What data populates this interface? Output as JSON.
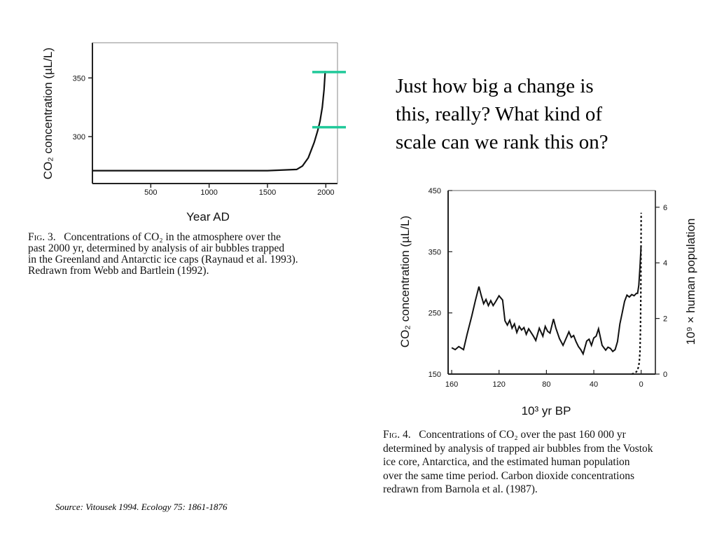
{
  "question": {
    "line1": "Just how big a change is",
    "line2": "this, really?  What kind of",
    "line3": "scale can we rank this on?"
  },
  "source": "Source: Vitousek 1994.  Ecology 75: 1861-1876",
  "fig3": {
    "caption_label": "Fig. 3.",
    "caption_lines": [
      "Concentrations of CO₂ in the atmosphere over the",
      "past 2000 yr, determined by analysis of air bubbles trapped",
      "in the Greenland and Antarctic ice caps (Raynaud et al. 1993).",
      "Redrawn from Webb and Bartlein (1992)."
    ]
  },
  "fig4": {
    "caption_label": "Fig. 4.",
    "caption_lines": [
      "Concentrations of CO₂ over the past 160 000 yr",
      "determined by analysis of trapped air bubbles from the Vostok",
      "ice core, Antarctica, and the estimated human population",
      "over the same time period. Carbon dioxide concentrations",
      "redrawn from Barnola et al. (1987)."
    ]
  },
  "marker_color": "#21c99a",
  "chart_data": [
    {
      "type": "line",
      "xlabel": "Year AD",
      "ylabel": "CO₂ concentration (µL/L)",
      "x_ticks": [
        500,
        1000,
        1500,
        2000
      ],
      "y_ticks": [
        300,
        350
      ],
      "xlim": [
        0,
        2100
      ],
      "ylim": [
        260,
        380
      ],
      "series": [
        {
          "x": [
            0,
            500,
            1000,
            1500,
            1750,
            1800,
            1850,
            1900,
            1930,
            1950,
            1970,
            1985,
            1995
          ],
          "y": [
            271,
            271,
            271,
            271,
            272,
            275,
            282,
            295,
            305,
            313,
            325,
            340,
            356
          ]
        }
      ],
      "markers_y": [
        355,
        308
      ]
    },
    {
      "type": "line",
      "xlabel": "10³ yr BP",
      "ylabel": "CO₂ concentration (µL/L)",
      "y2label": "10⁹ × human population",
      "x_ticks": [
        160,
        120,
        80,
        40,
        0
      ],
      "y_ticks": [
        150,
        250,
        350,
        450
      ],
      "y2_ticks": [
        0,
        2,
        4,
        6
      ],
      "xlim": [
        163,
        -12
      ],
      "ylim": [
        150,
        450
      ],
      "y2lim": [
        0,
        6.6
      ],
      "series": [
        {
          "x": [
            160,
            157,
            154,
            150,
            147,
            143,
            140,
            137,
            135,
            133,
            131,
            129,
            127,
            125,
            123,
            120,
            117,
            115,
            113,
            111,
            109,
            107,
            105,
            103,
            101,
            99,
            97,
            95,
            93,
            91,
            89,
            86,
            83,
            81,
            79,
            77,
            74,
            72,
            69,
            66,
            63,
            61,
            59,
            57,
            55,
            53,
            51,
            49,
            46,
            44,
            42,
            40,
            38,
            36,
            33,
            30,
            28,
            26,
            24,
            22,
            20,
            18,
            16,
            14,
            12,
            10,
            8,
            6,
            4,
            3,
            2,
            1,
            0.5,
            0.3,
            0.1
          ],
          "y": [
            193,
            190,
            195,
            190,
            215,
            245,
            270,
            293,
            278,
            265,
            272,
            262,
            270,
            262,
            268,
            278,
            271,
            237,
            230,
            238,
            225,
            232,
            218,
            228,
            222,
            226,
            215,
            224,
            218,
            212,
            205,
            225,
            212,
            228,
            220,
            217,
            240,
            225,
            208,
            197,
            210,
            219,
            210,
            213,
            203,
            195,
            190,
            183,
            204,
            207,
            197,
            209,
            212,
            224,
            197,
            189,
            194,
            192,
            187,
            190,
            203,
            232,
            250,
            269,
            279,
            276,
            280,
            278,
            282,
            282,
            295,
            325,
            345,
            350,
            360
          ]
        },
        {
          "name_axis": "right",
          "x": [
            8,
            6,
            4,
            3,
            2,
            1.5,
            1,
            0.6,
            0.3,
            0.15,
            0.05,
            0
          ],
          "y": [
            0.0,
            0.03,
            0.08,
            0.15,
            0.3,
            0.5,
            0.8,
            1.6,
            2.8,
            4.0,
            5.2,
            5.8
          ]
        }
      ]
    }
  ]
}
